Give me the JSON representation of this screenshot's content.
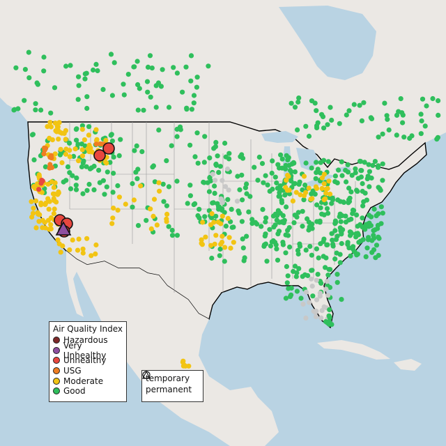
{
  "legend": {
    "title": "Air Quality Index",
    "categories": [
      {
        "label": "Hazardous",
        "color": "#7e2a2a",
        "icon": "circle"
      },
      {
        "label": "Very Unhealthy",
        "color": "#8e4fa0",
        "icon": "circle"
      },
      {
        "label": "Unhealthy",
        "color": "#e8473f",
        "icon": "circle"
      },
      {
        "label": "USG",
        "color": "#ef7d22",
        "icon": "circle"
      },
      {
        "label": "Moderate",
        "color": "#f2c413",
        "icon": "circle"
      },
      {
        "label": "Good",
        "color": "#2fbf5c",
        "icon": "circle"
      }
    ]
  },
  "monitor_types": [
    {
      "label": "temporary",
      "icon": "open-circle"
    },
    {
      "label": "permanent",
      "icon": "open-triangle"
    }
  ],
  "colors": {
    "land": "#ebe8e4",
    "water": "#b9d3e3",
    "good": "#2fbf5c",
    "moderate": "#f2c413",
    "usg": "#ef7d22",
    "unhealthy": "#e8473f",
    "very_unhealthy": "#8e4fa0",
    "no_data": "#c8c8c8"
  }
}
